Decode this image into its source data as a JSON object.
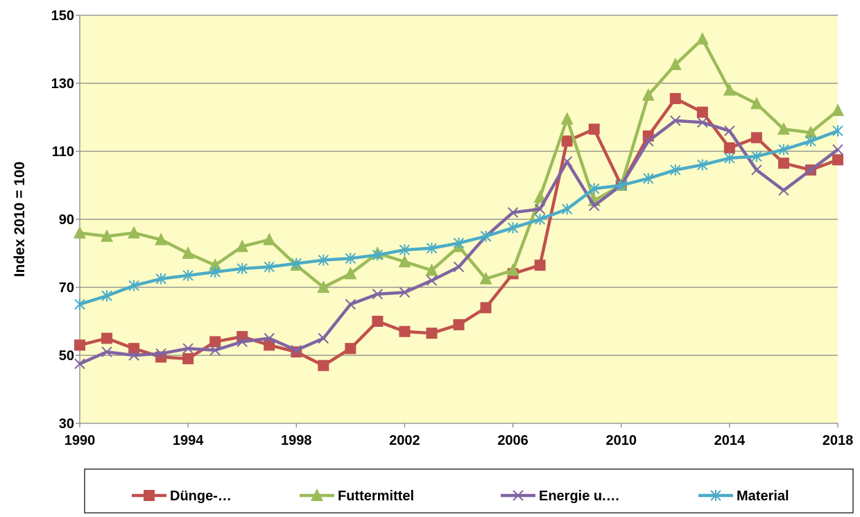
{
  "chart_data": {
    "type": "line",
    "y_label": "Index 2010 = 100",
    "x": [
      1990,
      1991,
      1992,
      1993,
      1994,
      1995,
      1996,
      1997,
      1998,
      1999,
      2000,
      2001,
      2002,
      2003,
      2004,
      2005,
      2006,
      2007,
      2008,
      2009,
      2010,
      2011,
      2012,
      2013,
      2014,
      2015,
      2016,
      2017,
      2018
    ],
    "xlim": [
      1990,
      2018
    ],
    "xticks": [
      1990,
      1994,
      1998,
      2002,
      2006,
      2010,
      2014,
      2018
    ],
    "ylim": [
      30,
      150
    ],
    "yticks": [
      30,
      50,
      70,
      90,
      110,
      130,
      150
    ],
    "grid": true,
    "legend": "bottom",
    "background": "#fdfcc6",
    "series": [
      {
        "name": "Dünge-…",
        "color": "#c0504d",
        "marker": "square",
        "values": [
          53,
          55,
          52,
          49.5,
          49,
          54,
          55.5,
          53,
          51,
          47,
          52,
          60,
          57,
          56.5,
          59,
          64,
          74,
          76.5,
          113,
          116.5,
          100,
          114.5,
          125.5,
          121.5,
          111,
          114,
          106.5,
          104.5,
          107.5
        ]
      },
      {
        "name": "Futtermittel",
        "color": "#9bbb59",
        "marker": "triangle",
        "values": [
          86,
          85,
          86,
          84,
          80,
          76.5,
          82,
          84,
          76.5,
          70,
          74,
          80,
          77.5,
          75,
          82,
          72.5,
          75,
          96.5,
          119.5,
          95.5,
          100,
          126.5,
          135.5,
          143,
          128,
          124,
          116.5,
          115.5,
          122
        ]
      },
      {
        "name": "Energie u.…",
        "color": "#8064a2",
        "marker": "x",
        "values": [
          47.5,
          51,
          50,
          50.5,
          52,
          51.5,
          54,
          55,
          51.5,
          55,
          65,
          68,
          68.5,
          72,
          76,
          85,
          92,
          93,
          107,
          94,
          100,
          113,
          119,
          118.5,
          116,
          104.5,
          98.5,
          104.5,
          110.5
        ]
      },
      {
        "name": "Material",
        "color": "#4bacc6",
        "marker": "star",
        "values": [
          65,
          67.5,
          70.5,
          72.5,
          73.5,
          74.5,
          75.5,
          76,
          77,
          78,
          78.5,
          79.5,
          81,
          81.5,
          83,
          85,
          87.5,
          90,
          93,
          99,
          100,
          102,
          104.5,
          106,
          108,
          108.5,
          110.5,
          113,
          116
        ]
      }
    ]
  }
}
